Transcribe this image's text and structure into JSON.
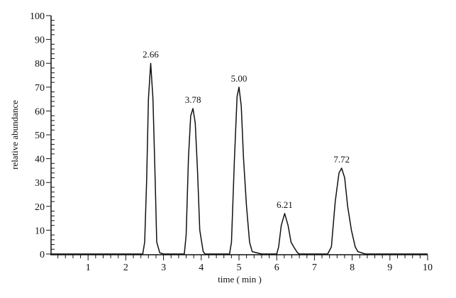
{
  "chart_data": {
    "type": "line",
    "title": "",
    "xlabel": "time ( min )",
    "ylabel": "relative abundance",
    "xlim": [
      0,
      10
    ],
    "ylim": [
      0,
      100
    ],
    "xticks": [
      1,
      2,
      3,
      4,
      5,
      6,
      7,
      8,
      9,
      10
    ],
    "yticks": [
      0,
      10,
      20,
      30,
      40,
      50,
      60,
      70,
      80,
      90,
      100
    ],
    "grid": false,
    "line_color": "#111111",
    "peaks": [
      {
        "label": "2.66",
        "x": 2.66,
        "y": 80
      },
      {
        "label": "3.78",
        "x": 3.78,
        "y": 61
      },
      {
        "label": "5.00",
        "x": 5.0,
        "y": 70
      },
      {
        "label": "6.21",
        "x": 6.21,
        "y": 17
      },
      {
        "label": "7.72",
        "x": 7.72,
        "y": 36
      }
    ],
    "series": [
      {
        "points": [
          [
            0,
            0
          ],
          [
            2.45,
            0
          ],
          [
            2.5,
            5
          ],
          [
            2.55,
            30
          ],
          [
            2.6,
            65
          ],
          [
            2.66,
            80
          ],
          [
            2.72,
            65
          ],
          [
            2.78,
            30
          ],
          [
            2.82,
            5
          ],
          [
            2.9,
            0.5
          ],
          [
            3.0,
            0
          ],
          [
            3.55,
            0
          ],
          [
            3.6,
            8
          ],
          [
            3.66,
            40
          ],
          [
            3.72,
            58
          ],
          [
            3.78,
            61
          ],
          [
            3.84,
            55
          ],
          [
            3.9,
            35
          ],
          [
            3.96,
            10
          ],
          [
            4.05,
            1
          ],
          [
            4.1,
            0
          ],
          [
            4.75,
            0
          ],
          [
            4.8,
            5
          ],
          [
            4.88,
            40
          ],
          [
            4.95,
            66
          ],
          [
            5.0,
            70
          ],
          [
            5.06,
            62
          ],
          [
            5.12,
            40
          ],
          [
            5.2,
            20
          ],
          [
            5.28,
            5
          ],
          [
            5.35,
            1
          ],
          [
            5.6,
            0
          ],
          [
            6.0,
            0
          ],
          [
            6.05,
            3
          ],
          [
            6.12,
            12
          ],
          [
            6.21,
            17
          ],
          [
            6.3,
            12
          ],
          [
            6.38,
            5
          ],
          [
            6.45,
            3
          ],
          [
            6.55,
            0.5
          ],
          [
            6.6,
            0
          ],
          [
            7.35,
            0
          ],
          [
            7.45,
            3
          ],
          [
            7.55,
            22
          ],
          [
            7.65,
            34
          ],
          [
            7.72,
            36
          ],
          [
            7.8,
            32
          ],
          [
            7.88,
            20
          ],
          [
            7.98,
            10
          ],
          [
            8.08,
            3
          ],
          [
            8.15,
            1
          ],
          [
            8.35,
            0
          ],
          [
            10,
            0
          ]
        ]
      }
    ]
  }
}
